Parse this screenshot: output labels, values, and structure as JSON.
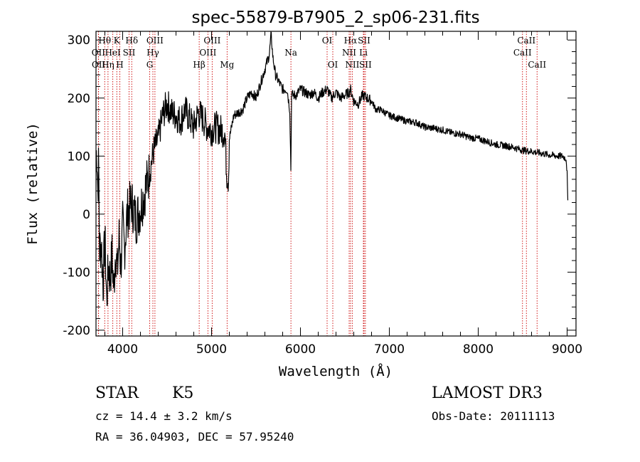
{
  "chart_data": {
    "type": "line",
    "title": "spec-55879-B7905_2_sp06-231.fits",
    "xlabel": "Wavelength (Å)",
    "ylabel": "Flux (relative)",
    "xlim": [
      3700,
      9100
    ],
    "ylim": [
      -210,
      315
    ],
    "xticks": [
      4000,
      5000,
      6000,
      7000,
      8000,
      9000
    ],
    "yticks": [
      -200,
      -100,
      0,
      100,
      200,
      300
    ],
    "line_color": "#000000",
    "marker_color": "#cc0000",
    "spectrum": {
      "name": "flux",
      "x": [
        3700,
        3710,
        3720,
        3730,
        3740,
        3760,
        3780,
        3800,
        3820,
        3840,
        3860,
        3880,
        3900,
        3920,
        3940,
        3960,
        3980,
        4000,
        4020,
        4050,
        4100,
        4150,
        4200,
        4250,
        4300,
        4350,
        4400,
        4450,
        4500,
        4550,
        4600,
        4650,
        4700,
        4750,
        4800,
        4850,
        4900,
        4950,
        5000,
        5050,
        5100,
        5150,
        5170,
        5190,
        5200,
        5250,
        5300,
        5350,
        5400,
        5450,
        5500,
        5550,
        5600,
        5650,
        5670,
        5680,
        5690,
        5700,
        5720,
        5750,
        5800,
        5850,
        5880,
        5893,
        5900,
        5910,
        5950,
        6000,
        6050,
        6100,
        6150,
        6200,
        6250,
        6300,
        6350,
        6400,
        6450,
        6500,
        6550,
        6563,
        6600,
        6650,
        6700,
        6750,
        6800,
        6850,
        6900,
        6950,
        7000,
        7100,
        7200,
        7300,
        7400,
        7500,
        7600,
        7700,
        7800,
        7900,
        8000,
        8100,
        8200,
        8300,
        8400,
        8500,
        8600,
        8700,
        8800,
        8900,
        8950,
        8990,
        9000,
        9010
      ],
      "y": [
        100,
        110,
        40,
        90,
        -60,
        -50,
        -120,
        -40,
        -150,
        -90,
        -110,
        -70,
        -130,
        -60,
        -100,
        -40,
        -90,
        -20,
        -60,
        0,
        20,
        -10,
        10,
        40,
        70,
        110,
        130,
        170,
        190,
        175,
        170,
        160,
        180,
        165,
        150,
        175,
        165,
        150,
        145,
        150,
        145,
        140,
        70,
        60,
        130,
        170,
        175,
        180,
        200,
        210,
        200,
        225,
        250,
        275,
        310,
        290,
        270,
        260,
        240,
        230,
        215,
        215,
        180,
        70,
        210,
        205,
        205,
        215,
        210,
        205,
        210,
        200,
        210,
        215,
        200,
        210,
        200,
        205,
        210,
        215,
        195,
        190,
        205,
        200,
        195,
        180,
        180,
        175,
        170,
        165,
        160,
        158,
        150,
        148,
        145,
        140,
        138,
        132,
        130,
        125,
        120,
        118,
        115,
        110,
        108,
        105,
        102,
        100,
        100,
        95,
        70,
        5
      ]
    },
    "line_markers": [
      {
        "label": "Hθ",
        "x": 3798,
        "row": 1
      },
      {
        "label": "OII",
        "x": 3727,
        "row": 2
      },
      {
        "label": "OII",
        "x": 3729,
        "row": 3
      },
      {
        "label": "K",
        "x": 3934,
        "row": 1
      },
      {
        "label": "HeI",
        "x": 3889,
        "row": 2
      },
      {
        "label": "Hη",
        "x": 3835,
        "row": 3
      },
      {
        "label": "Hδ",
        "x": 4102,
        "row": 1
      },
      {
        "label": "SII",
        "x": 4072,
        "row": 2
      },
      {
        "label": "H",
        "x": 3968,
        "row": 3
      },
      {
        "label": "OIII",
        "x": 4363,
        "row": 1
      },
      {
        "label": "Hγ",
        "x": 4340,
        "row": 2
      },
      {
        "label": "G",
        "x": 4304,
        "row": 3
      },
      {
        "label": "OIII",
        "x": 5007,
        "row": 1
      },
      {
        "label": "OIII",
        "x": 4959,
        "row": 2
      },
      {
        "label": "Hβ",
        "x": 4861,
        "row": 3
      },
      {
        "label": "Mg",
        "x": 5175,
        "row": 3
      },
      {
        "label": "Na",
        "x": 5893,
        "row": 2
      },
      {
        "label": "OI",
        "x": 6300,
        "row": 1
      },
      {
        "label": "OI",
        "x": 6364,
        "row": 3
      },
      {
        "label": "Hα",
        "x": 6563,
        "row": 1
      },
      {
        "label": "NII",
        "x": 6548,
        "row": 2
      },
      {
        "label": "NII",
        "x": 6583,
        "row": 3
      },
      {
        "label": "SII",
        "x": 6716,
        "row": 1
      },
      {
        "label": "Li",
        "x": 6708,
        "row": 2
      },
      {
        "label": "SII",
        "x": 6731,
        "row": 3
      },
      {
        "label": "CaII",
        "x": 8542,
        "row": 1
      },
      {
        "label": "CaII",
        "x": 8498,
        "row": 2
      },
      {
        "label": "CaII",
        "x": 8662,
        "row": 3
      }
    ]
  },
  "info": {
    "object_class": "STAR",
    "subclass": "K5",
    "survey": "LAMOST DR3",
    "cz": "cz = 14.4 ± 3.2 km/s",
    "obs_date": "Obs-Date: 20111113",
    "coords": "RA =  36.04903, DEC =  57.95240"
  }
}
